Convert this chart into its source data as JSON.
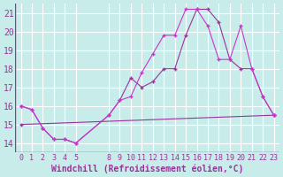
{
  "xlabel": "Windchill (Refroidissement éolien,°C)",
  "ylabel": "",
  "background_color": "#c8ecea",
  "grid_color": "#ffffff",
  "line_color": "#993399",
  "line_color2": "#cc33cc",
  "xticks": [
    0,
    1,
    2,
    3,
    4,
    5,
    8,
    9,
    10,
    11,
    12,
    13,
    14,
    15,
    16,
    17,
    18,
    19,
    20,
    21,
    22,
    23
  ],
  "yticks": [
    14,
    15,
    16,
    17,
    18,
    19,
    20,
    21
  ],
  "xlim": [
    -0.5,
    23.5
  ],
  "ylim": [
    13.5,
    21.5
  ],
  "series1_x": [
    0,
    1,
    2,
    3,
    4,
    5,
    8,
    9,
    10,
    11,
    12,
    13,
    14,
    15,
    16,
    17,
    18,
    19,
    20,
    21,
    22,
    23
  ],
  "series1_y": [
    16.0,
    15.8,
    14.8,
    14.2,
    14.2,
    14.0,
    15.5,
    16.3,
    17.5,
    17.0,
    17.3,
    18.0,
    18.0,
    19.8,
    21.2,
    21.2,
    20.5,
    18.5,
    18.0,
    18.0,
    16.5,
    15.5
  ],
  "series2_x": [
    0,
    1,
    2,
    3,
    4,
    5,
    8,
    9,
    10,
    11,
    12,
    13,
    14,
    15,
    16,
    17,
    18,
    19,
    20,
    21,
    22,
    23
  ],
  "series2_y": [
    16.0,
    15.8,
    14.8,
    14.2,
    14.2,
    14.0,
    15.5,
    16.3,
    16.5,
    17.8,
    18.8,
    19.8,
    19.8,
    21.2,
    21.2,
    20.3,
    18.5,
    18.5,
    20.3,
    18.0,
    16.5,
    15.5
  ],
  "series3_x": [
    0,
    23
  ],
  "series3_y": [
    15.0,
    15.5
  ],
  "fontsize_xlabel": 7,
  "fontsize_ytick": 7,
  "fontsize_xtick": 6
}
